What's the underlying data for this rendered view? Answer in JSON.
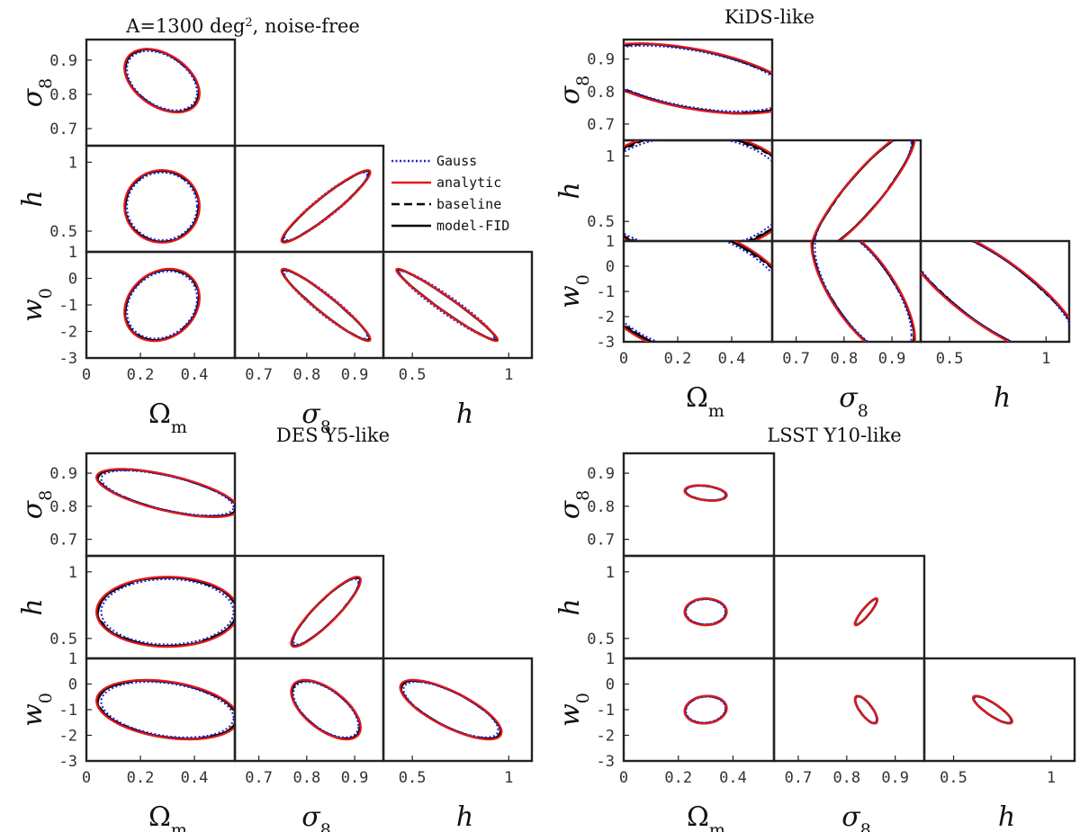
{
  "figure": {
    "parameters": [
      "Ωm",
      "σ8",
      "h",
      "w0"
    ],
    "param_labels": {
      "om": {
        "main": "Ω",
        "sub": "m"
      },
      "s8": {
        "main": "σ",
        "sub": "8"
      },
      "h": {
        "main": "h",
        "sub": ""
      },
      "w0": {
        "main": "w",
        "sub": "0"
      }
    }
  },
  "legend": {
    "entries": [
      {
        "label": "Gauss",
        "color": "#1f1fd6",
        "style": "dotted"
      },
      {
        "label": "analytic",
        "color": "#e3191c",
        "style": "solid"
      },
      {
        "label": "baseline",
        "color": "#000000",
        "style": "dashed"
      },
      {
        "label": "model-FID",
        "color": "#000000",
        "style": "solid"
      }
    ]
  },
  "chart_data": [
    {
      "type": "contour-triangle",
      "title": "A=1300 deg², noise-free",
      "title_main": "A=1300 deg",
      "title_sup": "2",
      "title_rest": ", noise-free",
      "ranges": {
        "om": [
          0,
          0.55
        ],
        "s8": [
          0.65,
          0.96
        ],
        "h": [
          0.35,
          1.12
        ],
        "w0": [
          -3,
          1
        ]
      },
      "ticks": {
        "om": [
          0,
          0.2,
          0.4
        ],
        "om_labels": [
          "0",
          "0.2",
          "0.4"
        ],
        "s8": [
          0.7,
          0.8,
          0.9
        ],
        "s8_labels": [
          "0.7",
          "0.8",
          "0.9"
        ],
        "h": [
          0.5,
          1
        ],
        "h_labels": [
          "0.5",
          "1"
        ],
        "w0": [
          1,
          0,
          -1,
          -2,
          -3
        ],
        "w0_labels": [
          "1",
          "0",
          "-1",
          "-2",
          "-3"
        ]
      },
      "center": {
        "om": 0.28,
        "s8": 0.84,
        "h": 0.68,
        "w0": -1.0
      },
      "sigma": {
        "om": 0.09,
        "s8": 0.06,
        "h": 0.17,
        "w0": 0.88
      },
      "rho": {
        "om-s8": -0.4,
        "om-h": 0.0,
        "om-w0": 0.2,
        "s8-h": 0.94,
        "s8-w0": -0.95,
        "h-w0": -0.97
      },
      "show_legend": true
    },
    {
      "type": "contour-triangle",
      "title": "KiDS-like",
      "title_main": "KiDS-like",
      "title_sup": "",
      "title_rest": "",
      "ranges": {
        "om": [
          0,
          0.55
        ],
        "s8": [
          0.65,
          0.96
        ],
        "h": [
          0.35,
          1.12
        ],
        "w0": [
          -3,
          1
        ]
      },
      "ticks": {
        "om": [
          0,
          0.2,
          0.4
        ],
        "om_labels": [
          "0",
          "0.2",
          "0.4"
        ],
        "s8": [
          0.7,
          0.8,
          0.9
        ],
        "s8_labels": [
          "0.7",
          "0.8",
          "0.9"
        ],
        "h": [
          0.5,
          1
        ],
        "h_labels": [
          "0.5",
          "1"
        ],
        "w0": [
          1,
          0,
          -1,
          -2,
          -3
        ],
        "w0_labels": [
          "1",
          "0",
          "-1",
          "-2",
          "-3"
        ]
      },
      "center": {
        "om": 0.25,
        "s8": 0.84,
        "h": 0.72,
        "w0": -1.0
      },
      "sigma": {
        "om": 0.25,
        "s8": 0.07,
        "h": 0.3,
        "w0": 1.75
      },
      "rho": {
        "om-s8": -0.5,
        "om-h": 0.0,
        "om-w0": -0.3,
        "s8-h": 0.9,
        "s8-w0": -0.7,
        "h-w0": -0.8
      },
      "show_legend": false
    },
    {
      "type": "contour-triangle",
      "title": "DES Y5-like",
      "title_main": "DES Y5-like",
      "title_sup": "",
      "title_rest": "",
      "ranges": {
        "om": [
          0,
          0.55
        ],
        "s8": [
          0.65,
          0.96
        ],
        "h": [
          0.35,
          1.12
        ],
        "w0": [
          -3,
          1
        ]
      },
      "ticks": {
        "om": [
          0,
          0.2,
          0.4
        ],
        "om_labels": [
          "0",
          "0.2",
          "0.4"
        ],
        "s8": [
          0.7,
          0.8,
          0.9
        ],
        "s8_labels": [
          "0.7",
          "0.8",
          "0.9"
        ],
        "h": [
          0.5,
          1
        ],
        "h_labels": [
          "0.5",
          "1"
        ],
        "w0": [
          1,
          0,
          -1,
          -2,
          -3
        ],
        "w0_labels": [
          "1",
          "0",
          "-1",
          "-2",
          "-3"
        ]
      },
      "center": {
        "om": 0.3,
        "s8": 0.84,
        "h": 0.7,
        "w0": -1.0
      },
      "sigma": {
        "om": 0.17,
        "s8": 0.047,
        "h": 0.17,
        "w0": 0.75
      },
      "rho": {
        "om-s8": -0.65,
        "om-h": 0.0,
        "om-w0": -0.3,
        "s8-h": 0.9,
        "s8-w0": -0.6,
        "h-w0": -0.75
      },
      "show_legend": false
    },
    {
      "type": "contour-triangle",
      "title": "LSST Y10-like",
      "title_main": "LSST Y10-like",
      "title_sup": "",
      "title_rest": "",
      "ranges": {
        "om": [
          0,
          0.55
        ],
        "s8": [
          0.65,
          0.96
        ],
        "h": [
          0.35,
          1.12
        ],
        "w0": [
          -3,
          1
        ]
      },
      "ticks": {
        "om": [
          0,
          0.2,
          0.4
        ],
        "om_labels": [
          "0",
          "0.2",
          "0.4"
        ],
        "s8": [
          0.7,
          0.8,
          0.9
        ],
        "s8_labels": [
          "0.7",
          "0.8",
          "0.9"
        ],
        "h": [
          0.5,
          1
        ],
        "h_labels": [
          "0.5",
          "1"
        ],
        "w0": [
          1,
          0,
          -1,
          -2,
          -3
        ],
        "w0_labels": [
          "1",
          "0",
          "-1",
          "-2",
          "-3"
        ]
      },
      "center": {
        "om": 0.3,
        "s8": 0.84,
        "h": 0.7,
        "w0": -1.0
      },
      "sigma": {
        "om": 0.05,
        "s8": 0.015,
        "h": 0.065,
        "w0": 0.35
      },
      "rho": {
        "om-s8": -0.3,
        "om-h": 0.0,
        "om-w0": 0.1,
        "s8-h": 0.9,
        "s8-w0": -0.75,
        "h-w0": -0.85
      },
      "show_legend": false
    }
  ]
}
